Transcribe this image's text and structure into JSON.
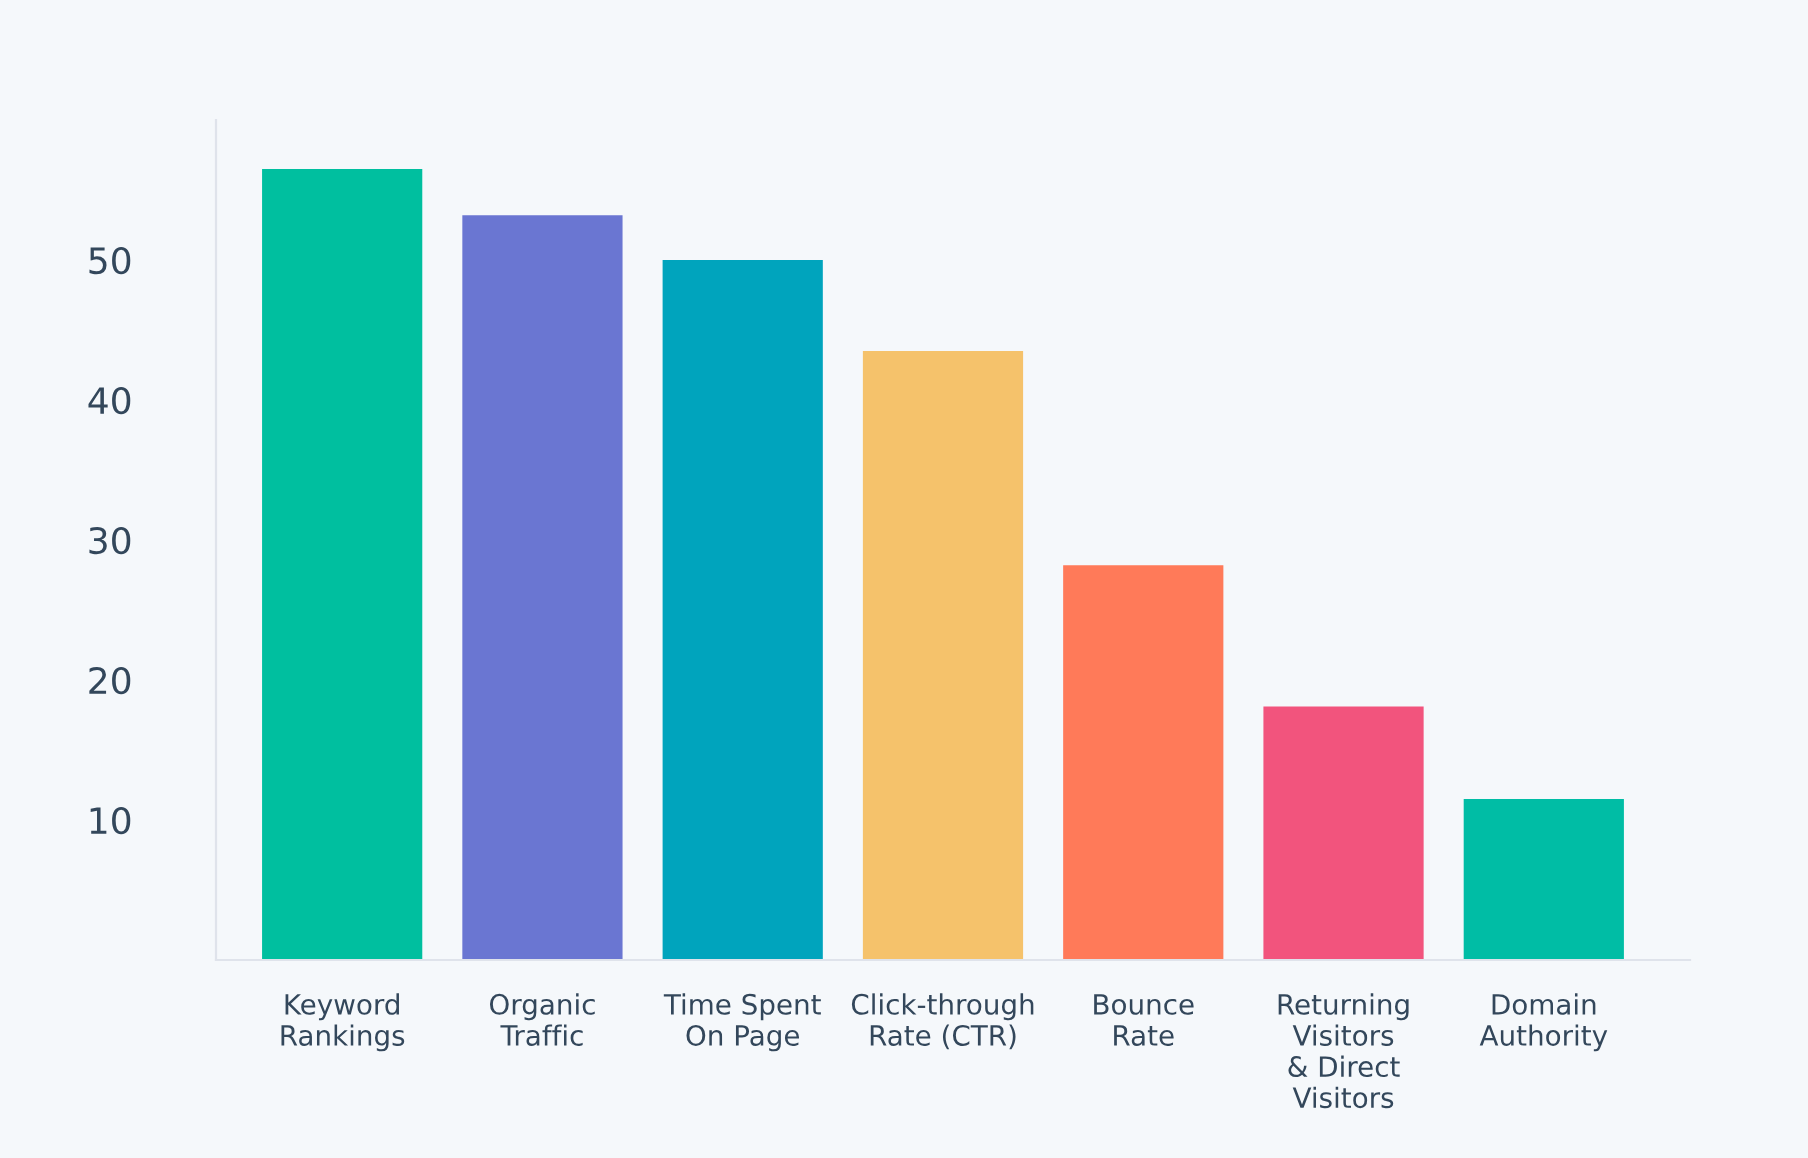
{
  "chart_data": {
    "type": "bar",
    "categories": [
      "Keyword\nRankings",
      "Organic\nTraffic",
      "Time Spent\nOn Page",
      "Click-through\nRate (CTR)",
      "Bounce\nRate",
      "Returning\nVisitors\n& Direct\nVisitors",
      "Domain\nAuthority"
    ],
    "values": [
      56.5,
      53.2,
      50,
      43.5,
      28.2,
      18.1,
      11.5
    ],
    "colors": [
      "#00bf9f",
      "#6a76d2",
      "#00a4bd",
      "#f5c26b",
      "#ff7a59",
      "#f2547d",
      "#00bda5"
    ],
    "ylim": [
      0,
      60
    ],
    "yticks": [
      10,
      20,
      30,
      40,
      50
    ],
    "grid": false,
    "legend": false
  }
}
